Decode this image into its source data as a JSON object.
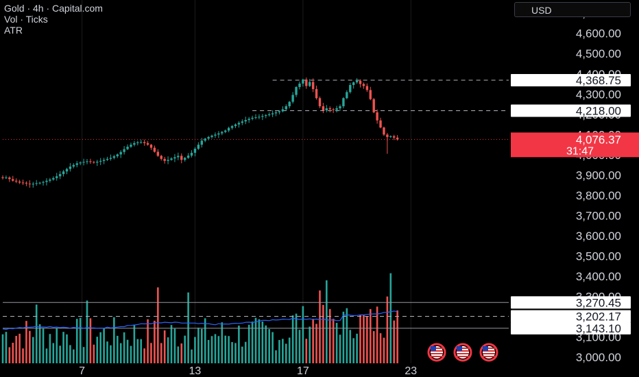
{
  "legend": {
    "symbol": "Gold · 4h · Capital.com",
    "volume": "Vol · Ticks",
    "atr": "ATR"
  },
  "currency_button": "USD",
  "colors": {
    "up": "#26a69a",
    "down": "#ef5350",
    "atr_line": "#2962ff",
    "current_price_bg": "#f23645",
    "label_bg": "#ffffff"
  },
  "icons": [
    "us-flag-icon",
    "us-flag-icon",
    "us-flag-icon"
  ],
  "chart_data": {
    "type": "candlestick",
    "title": "Gold · 4h · Capital.com",
    "y_ticks": [
      "4,700.00",
      "4,600.00",
      "4,500.00",
      "4,400.00",
      "4,300.00",
      "4,200.00",
      "4,100.00",
      "4,000.00",
      "3,900.00",
      "3,800.00",
      "3,700.00",
      "3,600.00",
      "3,500.00",
      "3,400.00",
      "3,300.00",
      "3,200.00",
      "3,100.00",
      "3,000.00"
    ],
    "y_tick_values": [
      4700,
      4600,
      4500,
      4400,
      4300,
      4200,
      4100,
      4000,
      3900,
      3800,
      3700,
      3600,
      3500,
      3400,
      3300,
      3200,
      3100,
      3000
    ],
    "ylim": [
      2970,
      4765
    ],
    "x_ticks": [
      "7",
      "13",
      "17",
      "23"
    ],
    "x_tick_index": [
      23.5,
      57,
      89,
      121
    ],
    "n_slots": 127,
    "price_labels": [
      {
        "text": "4,368.75",
        "value": 4368.75,
        "kind": "level"
      },
      {
        "text": "4,218.00",
        "value": 4218.0,
        "kind": "level"
      },
      {
        "text": "4,076.37",
        "value": 4076.37,
        "kind": "current",
        "countdown": "31:47"
      },
      {
        "text": "3,270.45",
        "value": 3270.45,
        "kind": "level"
      },
      {
        "text": "3,202.17",
        "value": 3202.17,
        "kind": "level"
      },
      {
        "text": "3,143.10",
        "value": 3143.1,
        "kind": "level"
      }
    ],
    "level_lines": [
      {
        "value": 4368.75,
        "style": "dashed",
        "from_index": 80
      },
      {
        "value": 4218.0,
        "style": "dashed",
        "from_index": 74
      },
      {
        "value": 4076.37,
        "style": "dotted-current",
        "from_index": 0
      },
      {
        "value": 3270.45,
        "style": "solid",
        "from_index": 0
      },
      {
        "value": 3202.17,
        "style": "dashed",
        "from_index": 0
      },
      {
        "value": 3143.1,
        "style": "solid",
        "from_index": 0
      }
    ],
    "close_series": [
      3885,
      3888,
      3880,
      3872,
      3868,
      3863,
      3862,
      3858,
      3855,
      3857,
      3860,
      3862,
      3866,
      3872,
      3878,
      3885,
      3894,
      3905,
      3918,
      3930,
      3942,
      3950,
      3958,
      3962,
      3965,
      3968,
      3965,
      3962,
      3966,
      3970,
      3975,
      3980,
      3985,
      3993,
      4002,
      4014,
      4028,
      4040,
      4050,
      4058,
      4062,
      4063,
      4058,
      4050,
      4035,
      4015,
      3995,
      3980,
      3970,
      3975,
      3982,
      3988,
      3995,
      3975,
      3985,
      3996,
      4010,
      4030,
      4050,
      4070,
      4080,
      4088,
      4095,
      4100,
      4106,
      4113,
      4120,
      4133,
      4142,
      4150,
      4158,
      4165,
      4172,
      4178,
      4183,
      4186,
      4188,
      4192,
      4196,
      4200,
      4205,
      4210,
      4215,
      4225,
      4240,
      4262,
      4296,
      4335,
      4352,
      4372,
      4340,
      4360,
      4325,
      4280,
      4240,
      4220,
      4230,
      4225,
      4222,
      4230,
      4240,
      4280,
      4310,
      4345,
      4358,
      4366,
      4350,
      4340,
      4320,
      4275,
      4210,
      4170,
      4135,
      4100,
      4088,
      4092,
      4085,
      4076
    ],
    "volume_max": 3430
  }
}
